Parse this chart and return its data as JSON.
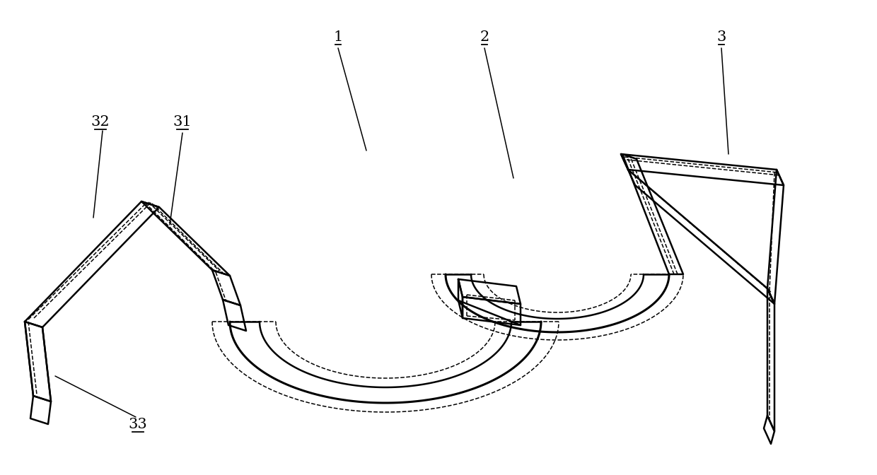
{
  "bg_color": "#ffffff",
  "lc": "#000000",
  "lw": 1.8,
  "lw2": 1.1,
  "fig_w": 12.4,
  "fig_h": 6.72,
  "dpi": 100
}
